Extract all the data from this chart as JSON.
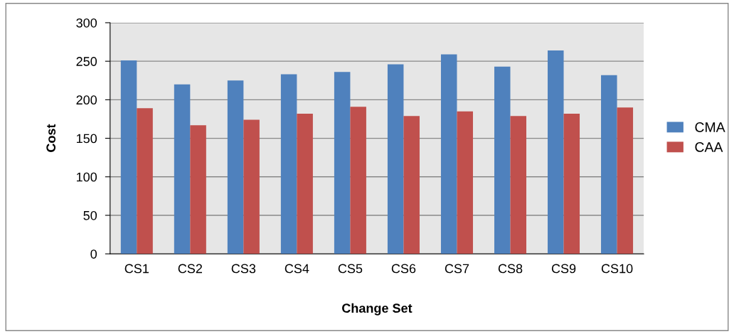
{
  "chart_data": {
    "type": "bar",
    "xlabel": "Change Set",
    "ylabel": "Cost",
    "categories": [
      "CS1",
      "CS2",
      "CS3",
      "CS4",
      "CS5",
      "CS6",
      "CS7",
      "CS8",
      "CS9",
      "CS10"
    ],
    "series": [
      {
        "name": "CMA",
        "color": "#4f81bd",
        "values": [
          251,
          220,
          225,
          233,
          236,
          246,
          259,
          243,
          264,
          232
        ]
      },
      {
        "name": "CAA",
        "color": "#c0504d",
        "values": [
          189,
          167,
          174,
          182,
          191,
          179,
          185,
          179,
          182,
          190
        ]
      }
    ],
    "ylim": [
      0,
      300
    ],
    "yticks": [
      0,
      50,
      100,
      150,
      200,
      250,
      300
    ],
    "grid": "y",
    "legend": "right"
  }
}
